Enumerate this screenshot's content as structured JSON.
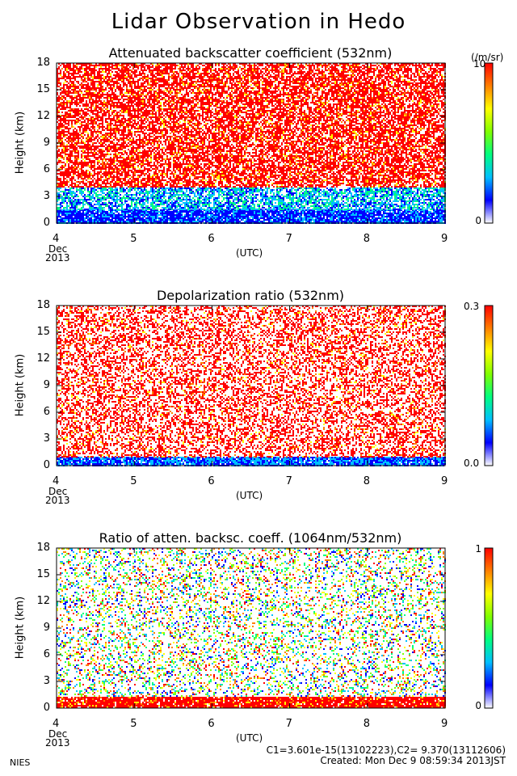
{
  "title": "Lidar Observation in Hedo",
  "x_axis": {
    "ticks": [
      "4",
      "5",
      "6",
      "7",
      "8",
      "9"
    ],
    "unit_label": "(UTC)",
    "start_month": "Dec",
    "start_year": "2013"
  },
  "y_axis": {
    "label": "Height (km)",
    "ticks": [
      "0",
      "3",
      "6",
      "9",
      "12",
      "15",
      "18"
    ]
  },
  "panels": [
    {
      "title": "Attenuated backscatter coefficient (532nm)",
      "colorbar_top": "10",
      "colorbar_bottom": "0",
      "colorbar_unit": "(/m/sr)"
    },
    {
      "title": "Depolarization ratio (532nm)",
      "colorbar_top": "0.3",
      "colorbar_bottom": "0.0",
      "colorbar_unit": ""
    },
    {
      "title": "Ratio of atten. backsc. coeff. (1064nm/532nm)",
      "colorbar_top": "1",
      "colorbar_bottom": "0",
      "colorbar_unit": ""
    }
  ],
  "footer": {
    "organization": "NIES",
    "constants": "C1=3.601e-15(13102223),C2= 9.370(13112606)",
    "created": "Created: Mon Dec  9 08:59:34 2013JST"
  },
  "colors": {
    "colormap": [
      "#ffffff",
      "#0000ff",
      "#00bfff",
      "#00ff80",
      "#80ff00",
      "#ffff00",
      "#ff8000",
      "#ff0000"
    ]
  },
  "chart_data": [
    {
      "type": "heatmap",
      "title": "Attenuated backscatter coefficient (532nm)",
      "xlabel": "(UTC)",
      "ylabel": "Height (km)",
      "xlim": [
        4,
        9
      ],
      "ylim": [
        0,
        18
      ],
      "colorbar_range": [
        0,
        10
      ],
      "description_layers": [
        {
          "height_range_km": [
            0,
            1.5
          ],
          "dominant_color": "blue"
        },
        {
          "height_range_km": [
            1.5,
            4
          ],
          "dominant_color": "cyan-green"
        },
        {
          "height_range_km": [
            4,
            18
          ],
          "dominant_color": "red"
        }
      ]
    },
    {
      "type": "heatmap",
      "title": "Depolarization ratio (532nm)",
      "xlabel": "(UTC)",
      "ylabel": "Height (km)",
      "xlim": [
        4,
        9
      ],
      "ylim": [
        0,
        18
      ],
      "colorbar_range": [
        0.0,
        0.3
      ],
      "description_layers": [
        {
          "height_range_km": [
            0,
            1
          ],
          "dominant_color": "blue-cyan"
        },
        {
          "height_range_km": [
            1,
            18
          ],
          "dominant_color": "red"
        }
      ]
    },
    {
      "type": "heatmap",
      "title": "Ratio of atten. backsc. coeff. (1064nm/532nm)",
      "xlabel": "(UTC)",
      "ylabel": "Height (km)",
      "xlim": [
        4,
        9
      ],
      "ylim": [
        0,
        18
      ],
      "colorbar_range": [
        0,
        1
      ],
      "description_layers": [
        {
          "height_range_km": [
            0,
            1.2
          ],
          "dominant_color": "red"
        },
        {
          "height_range_km": [
            1.2,
            18
          ],
          "dominant_color": "mixed"
        }
      ]
    }
  ]
}
